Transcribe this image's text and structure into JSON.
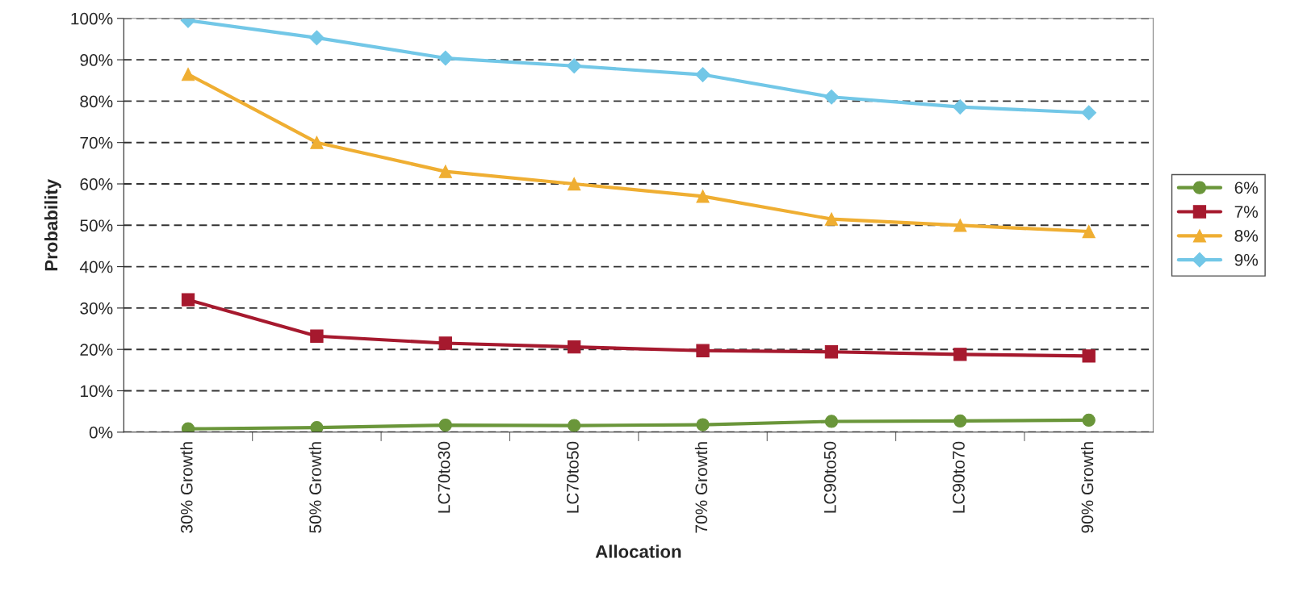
{
  "chart_data": {
    "type": "line",
    "xlabel": "Allocation",
    "ylabel": "Probability",
    "categories": [
      "30% Growth",
      "50% Growth",
      "LC70to30",
      "LC70to50",
      "70% Growth",
      "LC90to50",
      "LC90to70",
      "90% Growth"
    ],
    "series": [
      {
        "name": "6%",
        "color": "#6a963a",
        "marker": "circle",
        "values": [
          0.8,
          1.1,
          1.7,
          1.6,
          1.8,
          2.6,
          2.7,
          2.9
        ]
      },
      {
        "name": "7%",
        "color": "#a6192e",
        "marker": "square",
        "values": [
          32,
          23.2,
          21.5,
          20.6,
          19.7,
          19.4,
          18.8,
          18.4
        ]
      },
      {
        "name": "8%",
        "color": "#efae32",
        "marker": "triangle",
        "values": [
          86.5,
          70,
          63,
          60,
          57,
          51.5,
          50,
          48.5
        ]
      },
      {
        "name": "9%",
        "color": "#72c7e7",
        "marker": "diamond",
        "values": [
          99.5,
          95.3,
          90.4,
          88.5,
          86.4,
          81,
          78.6,
          77.2
        ]
      }
    ],
    "ylim": [
      0,
      100
    ],
    "yticks": [
      {
        "value": 0,
        "label": "0%"
      },
      {
        "value": 10,
        "label": "10%"
      },
      {
        "value": 20,
        "label": "20%"
      },
      {
        "value": 30,
        "label": "30%"
      },
      {
        "value": 40,
        "label": "40%"
      },
      {
        "value": 50,
        "label": "50%"
      },
      {
        "value": 60,
        "label": "60%"
      },
      {
        "value": 70,
        "label": "70%"
      },
      {
        "value": 80,
        "label": "80%"
      },
      {
        "value": 90,
        "label": "90%"
      },
      {
        "value": 100,
        "label": "100%"
      }
    ],
    "grid": "y",
    "legend": "right",
    "line_style": "solid"
  }
}
